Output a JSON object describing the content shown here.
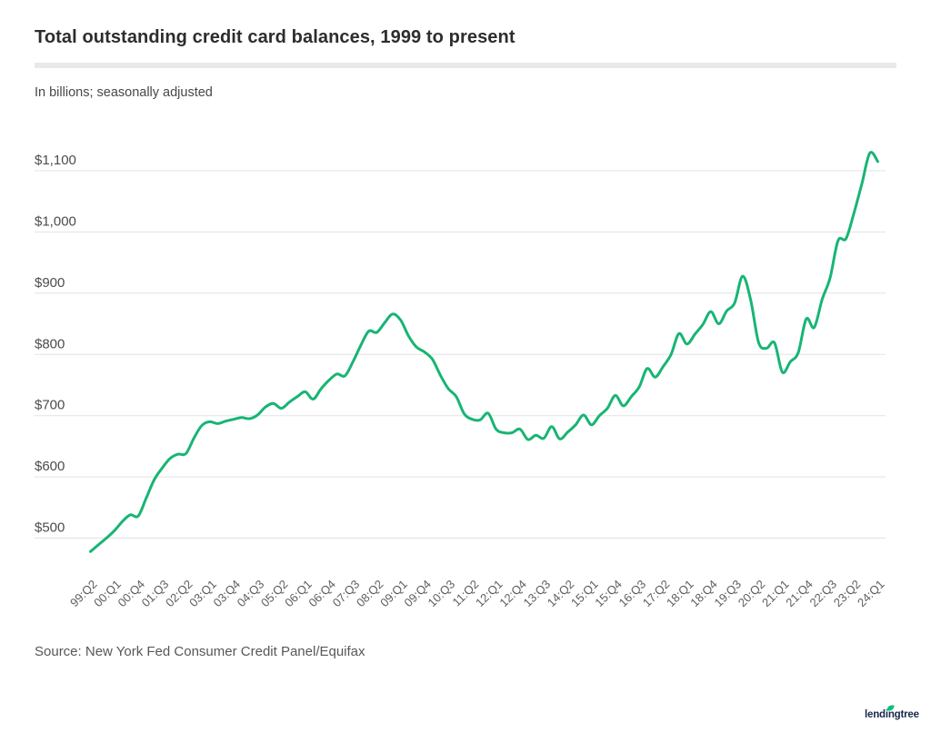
{
  "header": {
    "title": "Total outstanding credit card balances, 1999 to present",
    "subtitle": "In billions; seasonally adjusted"
  },
  "footer": {
    "source": "Source: New York Fed Consumer Credit Panel/Equifax",
    "logo_text": "lendingtree"
  },
  "chart_data": {
    "type": "line",
    "title": "Total outstanding credit card balances, 1999 to present",
    "subtitle": "In billions; seasonally adjusted",
    "unit": "USD billions",
    "categories": [
      "99:Q2",
      "99:Q3",
      "99:Q4",
      "00:Q1",
      "00:Q2",
      "00:Q3",
      "00:Q4",
      "01:Q1",
      "01:Q2",
      "01:Q3",
      "01:Q4",
      "02:Q1",
      "02:Q2",
      "02:Q3",
      "02:Q4",
      "03:Q1",
      "03:Q2",
      "03:Q3",
      "03:Q4",
      "04:Q1",
      "04:Q2",
      "04:Q3",
      "04:Q4",
      "05:Q1",
      "05:Q2",
      "05:Q3",
      "05:Q4",
      "06:Q1",
      "06:Q2",
      "06:Q3",
      "06:Q4",
      "07:Q1",
      "07:Q2",
      "07:Q3",
      "07:Q4",
      "08:Q1",
      "08:Q2",
      "08:Q3",
      "08:Q4",
      "09:Q1",
      "09:Q2",
      "09:Q3",
      "09:Q4",
      "10:Q1",
      "10:Q2",
      "10:Q3",
      "10:Q4",
      "11:Q1",
      "11:Q2",
      "11:Q3",
      "11:Q4",
      "12:Q1",
      "12:Q2",
      "12:Q3",
      "12:Q4",
      "13:Q1",
      "13:Q2",
      "13:Q3",
      "13:Q4",
      "14:Q1",
      "14:Q2",
      "14:Q3",
      "14:Q4",
      "15:Q1",
      "15:Q2",
      "15:Q3",
      "15:Q4",
      "16:Q1",
      "16:Q2",
      "16:Q3",
      "16:Q4",
      "17:Q1",
      "17:Q2",
      "17:Q3",
      "17:Q4",
      "18:Q1",
      "18:Q2",
      "18:Q3",
      "18:Q4",
      "19:Q1",
      "19:Q2",
      "19:Q3",
      "19:Q4",
      "20:Q1",
      "20:Q2",
      "20:Q3",
      "20:Q4",
      "21:Q1",
      "21:Q2",
      "21:Q3",
      "21:Q4",
      "22:Q1",
      "22:Q2",
      "22:Q3",
      "22:Q4",
      "23:Q1",
      "23:Q2",
      "23:Q3",
      "23:Q4",
      "24:Q1"
    ],
    "values": [
      478,
      489,
      500,
      512,
      527,
      538,
      536,
      565,
      595,
      614,
      630,
      637,
      638,
      663,
      684,
      690,
      687,
      691,
      694,
      697,
      695,
      701,
      714,
      720,
      712,
      722,
      731,
      739,
      727,
      744,
      758,
      768,
      765,
      788,
      815,
      838,
      836,
      852,
      866,
      856,
      830,
      812,
      804,
      792,
      766,
      744,
      731,
      703,
      694,
      693,
      704,
      678,
      672,
      672,
      678,
      661,
      668,
      663,
      682,
      662,
      673,
      685,
      701,
      685,
      700,
      712,
      733,
      716,
      731,
      747,
      777,
      763,
      780,
      800,
      834,
      817,
      833,
      849,
      870,
      850,
      871,
      884,
      928,
      890,
      820,
      810,
      819,
      771,
      788,
      803,
      858,
      844,
      890,
      925,
      986,
      989,
      1031,
      1079,
      1129,
      1115
    ],
    "x_tick_every": 3,
    "x_tick_labels": [
      "99:Q2",
      "00:Q1",
      "00:Q4",
      "01:Q3",
      "02:Q2",
      "03:Q1",
      "03:Q4",
      "04:Q3",
      "05:Q2",
      "06:Q1",
      "06:Q4",
      "07:Q3",
      "08:Q2",
      "09:Q1",
      "09:Q4",
      "10:Q3",
      "11:Q2",
      "12:Q1",
      "12:Q4",
      "13:Q3",
      "14:Q2",
      "15:Q1",
      "15:Q4",
      "16:Q3",
      "17:Q2",
      "18:Q1",
      "18:Q4",
      "19:Q3",
      "20:Q2",
      "21:Q1",
      "21:Q4",
      "22:Q3",
      "23:Q2",
      "24:Q1"
    ],
    "y_tick_values": [
      500,
      600,
      700,
      800,
      900,
      1000,
      1100
    ],
    "y_tick_labels": [
      "$500",
      "$600",
      "$700",
      "$800",
      "$900",
      "$1,000",
      "$1,100"
    ],
    "ylim": [
      450,
      1150
    ],
    "grid": "horizontal",
    "legend": "none",
    "line_color": "#17b573",
    "grid_color": "#e3e3e3",
    "axis_label_color": "#5d5d5d",
    "logo_leaf_color": "#0bc17a"
  }
}
